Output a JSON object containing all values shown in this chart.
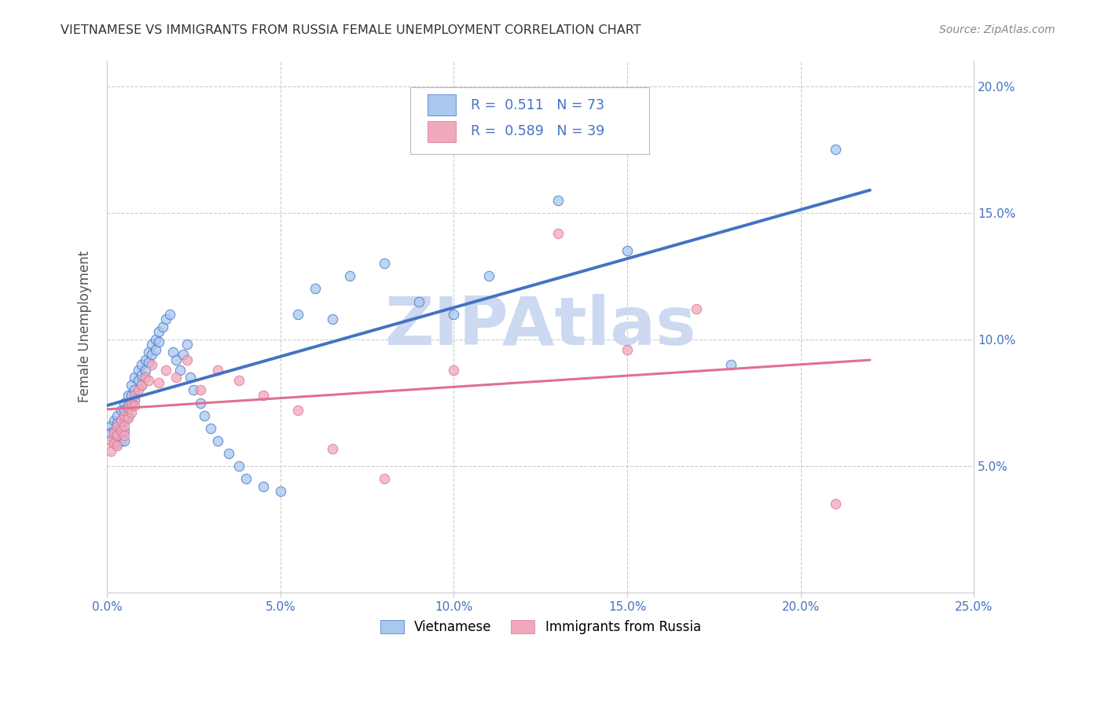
{
  "title": "VIETNAMESE VS IMMIGRANTS FROM RUSSIA FEMALE UNEMPLOYMENT CORRELATION CHART",
  "source": "Source: ZipAtlas.com",
  "ylabel": "Female Unemployment",
  "xlim": [
    0.0,
    0.25
  ],
  "ylim": [
    0.0,
    0.21
  ],
  "xticks": [
    0.0,
    0.05,
    0.1,
    0.15,
    0.2,
    0.25
  ],
  "xticklabels": [
    "0.0%",
    "5.0%",
    "10.0%",
    "15.0%",
    "20.0%",
    "25.0%"
  ],
  "ytick_positions": [
    0.05,
    0.1,
    0.15,
    0.2
  ],
  "yticklabels": [
    "5.0%",
    "10.0%",
    "15.0%",
    "20.0%"
  ],
  "axis_color": "#4472c4",
  "watermark": "ZIPAtlas",
  "watermark_color": "#ccd9f0",
  "legend_R1": "0.511",
  "legend_N1": "73",
  "legend_R2": "0.589",
  "legend_N2": "39",
  "legend_label1": "Vietnamese",
  "legend_label2": "Immigrants from Russia",
  "color_blue": "#a8c8f0",
  "color_pink": "#f0a8bc",
  "line_color_blue": "#4472c4",
  "line_color_pink": "#e07090",
  "scatter_alpha": 0.75,
  "scatter_size": 80,
  "vietnamese_x": [
    0.001,
    0.001,
    0.002,
    0.002,
    0.002,
    0.003,
    0.003,
    0.003,
    0.003,
    0.004,
    0.004,
    0.004,
    0.004,
    0.005,
    0.005,
    0.005,
    0.005,
    0.005,
    0.006,
    0.006,
    0.006,
    0.007,
    0.007,
    0.007,
    0.008,
    0.008,
    0.008,
    0.009,
    0.009,
    0.01,
    0.01,
    0.01,
    0.011,
    0.011,
    0.012,
    0.012,
    0.013,
    0.013,
    0.014,
    0.014,
    0.015,
    0.015,
    0.016,
    0.017,
    0.018,
    0.019,
    0.02,
    0.021,
    0.022,
    0.023,
    0.024,
    0.025,
    0.027,
    0.028,
    0.03,
    0.032,
    0.035,
    0.038,
    0.04,
    0.045,
    0.05,
    0.055,
    0.06,
    0.065,
    0.07,
    0.08,
    0.09,
    0.1,
    0.11,
    0.13,
    0.15,
    0.18,
    0.21
  ],
  "vietnamese_y": [
    0.066,
    0.063,
    0.068,
    0.064,
    0.06,
    0.07,
    0.067,
    0.063,
    0.059,
    0.072,
    0.068,
    0.064,
    0.06,
    0.075,
    0.072,
    0.068,
    0.064,
    0.06,
    0.078,
    0.074,
    0.07,
    0.082,
    0.078,
    0.074,
    0.085,
    0.08,
    0.076,
    0.088,
    0.084,
    0.09,
    0.086,
    0.082,
    0.092,
    0.088,
    0.095,
    0.091,
    0.098,
    0.094,
    0.1,
    0.096,
    0.103,
    0.099,
    0.105,
    0.108,
    0.11,
    0.095,
    0.092,
    0.088,
    0.094,
    0.098,
    0.085,
    0.08,
    0.075,
    0.07,
    0.065,
    0.06,
    0.055,
    0.05,
    0.045,
    0.042,
    0.04,
    0.11,
    0.12,
    0.108,
    0.125,
    0.13,
    0.115,
    0.11,
    0.125,
    0.155,
    0.135,
    0.09,
    0.175
  ],
  "russia_x": [
    0.001,
    0.001,
    0.002,
    0.002,
    0.003,
    0.003,
    0.003,
    0.004,
    0.004,
    0.005,
    0.005,
    0.005,
    0.006,
    0.006,
    0.007,
    0.007,
    0.008,
    0.008,
    0.009,
    0.01,
    0.011,
    0.012,
    0.013,
    0.015,
    0.017,
    0.02,
    0.023,
    0.027,
    0.032,
    0.038,
    0.045,
    0.055,
    0.065,
    0.08,
    0.1,
    0.13,
    0.15,
    0.17,
    0.21
  ],
  "russia_y": [
    0.06,
    0.056,
    0.063,
    0.059,
    0.066,
    0.062,
    0.058,
    0.068,
    0.064,
    0.07,
    0.066,
    0.062,
    0.073,
    0.069,
    0.075,
    0.071,
    0.078,
    0.074,
    0.08,
    0.082,
    0.085,
    0.084,
    0.09,
    0.083,
    0.088,
    0.085,
    0.092,
    0.08,
    0.088,
    0.084,
    0.078,
    0.072,
    0.057,
    0.045,
    0.088,
    0.142,
    0.096,
    0.112,
    0.035
  ]
}
